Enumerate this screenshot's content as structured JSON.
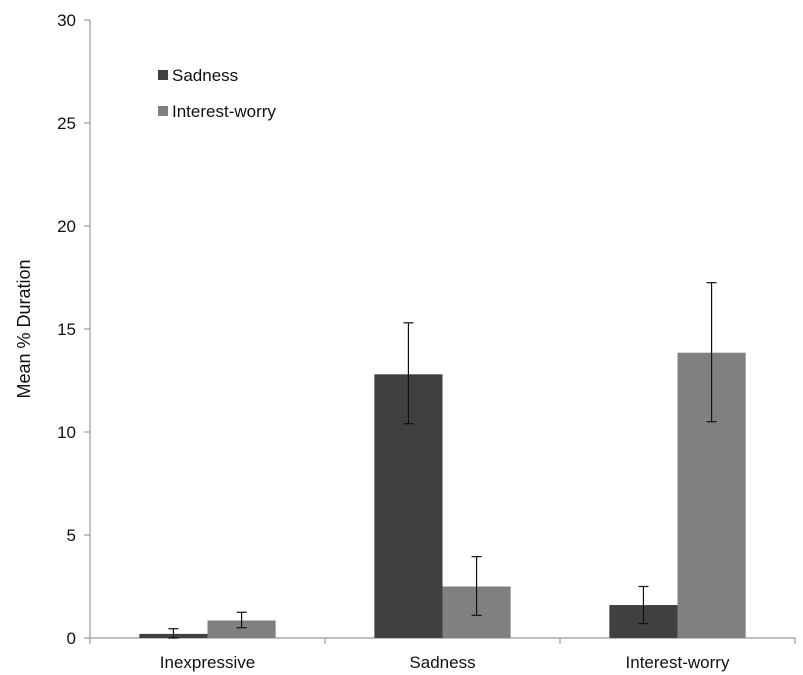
{
  "chart_data": {
    "type": "bar",
    "title": "",
    "xlabel": "",
    "ylabel": "Mean % Duration",
    "ylim": [
      0,
      30
    ],
    "yticks": [
      0,
      5,
      10,
      15,
      20,
      25,
      30
    ],
    "grid": false,
    "legend_position": "top-left",
    "categories": [
      "Inexpressive",
      "Sadness",
      "Interest-worry"
    ],
    "series": [
      {
        "name": "Sadness",
        "color": "#404040",
        "values": [
          0.2,
          12.8,
          1.6
        ],
        "error_low": [
          0.0,
          10.4,
          0.7
        ],
        "error_high": [
          0.45,
          15.3,
          2.5
        ]
      },
      {
        "name": "Interest-worry",
        "color": "#808080",
        "values": [
          0.85,
          2.5,
          13.85
        ],
        "error_low": [
          0.5,
          1.1,
          10.5
        ],
        "error_high": [
          1.25,
          3.95,
          17.25
        ]
      }
    ]
  }
}
